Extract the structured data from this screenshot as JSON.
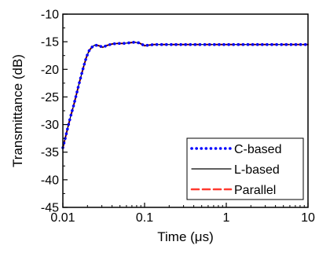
{
  "chart_data": {
    "type": "line",
    "xlabel": "Time (μs)",
    "ylabel": "Transmittance (dB)",
    "x_scale": "log",
    "xlim": [
      0.01,
      10
    ],
    "ylim": [
      -45,
      -10
    ],
    "x_ticks": [
      0.01,
      0.1,
      1,
      10
    ],
    "x_tick_labels": [
      "0.01",
      "0.1",
      "1",
      "10"
    ],
    "y_ticks": [
      -45,
      -40,
      -35,
      -30,
      -25,
      -20,
      -15,
      -10
    ],
    "y_tick_labels": [
      "-45",
      "-40",
      "-35",
      "-30",
      "-25",
      "-20",
      "-15",
      "-10"
    ],
    "grid": false,
    "legend_position": "bottom-right",
    "x": [
      0.01,
      0.0108,
      0.0116,
      0.0125,
      0.0135,
      0.0145,
      0.0156,
      0.0168,
      0.0181,
      0.0195,
      0.021,
      0.0226,
      0.0245,
      0.0275,
      0.031,
      0.034,
      0.04,
      0.047,
      0.055,
      0.065,
      0.075,
      0.085,
      0.1,
      0.13,
      0.17,
      0.2,
      0.3,
      0.5,
      1,
      2,
      3,
      5,
      10
    ],
    "series": [
      {
        "name": "C-based",
        "color": "#0000ff",
        "style": "dotted",
        "values": [
          -34.2,
          -32.2,
          -30.3,
          -28.4,
          -26.6,
          -24.8,
          -22.9,
          -21.1,
          -19.3,
          -17.7,
          -16.6,
          -16.0,
          -15.6,
          -15.7,
          -16.0,
          -15.7,
          -15.4,
          -15.3,
          -15.3,
          -15.2,
          -15.1,
          -15.2,
          -15.7,
          -15.5,
          -15.5,
          -15.5,
          -15.5,
          -15.5,
          -15.5,
          -15.5,
          -15.5,
          -15.5,
          -15.5
        ]
      },
      {
        "name": "L-based",
        "color": "#000000",
        "style": "solid",
        "values": [
          -34.2,
          -32.2,
          -30.3,
          -28.4,
          -26.6,
          -24.8,
          -22.9,
          -21.1,
          -19.3,
          -17.7,
          -16.6,
          -16.0,
          -15.6,
          -15.7,
          -16.0,
          -15.7,
          -15.4,
          -15.3,
          -15.3,
          -15.2,
          -15.1,
          -15.2,
          -15.7,
          -15.5,
          -15.5,
          -15.5,
          -15.5,
          -15.5,
          -15.5,
          -15.5,
          -15.5,
          -15.5,
          -15.5
        ]
      },
      {
        "name": "Parallel",
        "color": "#ff3b30",
        "style": "dashed",
        "values": [
          -34.2,
          -32.2,
          -30.3,
          -28.4,
          -26.6,
          -24.8,
          -22.9,
          -21.1,
          -19.3,
          -17.7,
          -16.6,
          -16.0,
          -15.6,
          -15.7,
          -16.0,
          -15.7,
          -15.4,
          -15.3,
          -15.3,
          -15.2,
          -15.1,
          -15.2,
          -15.7,
          -15.5,
          -15.5,
          -15.5,
          -15.5,
          -15.5,
          -15.5,
          -15.5,
          -15.5,
          -15.5,
          -15.5
        ]
      }
    ]
  }
}
